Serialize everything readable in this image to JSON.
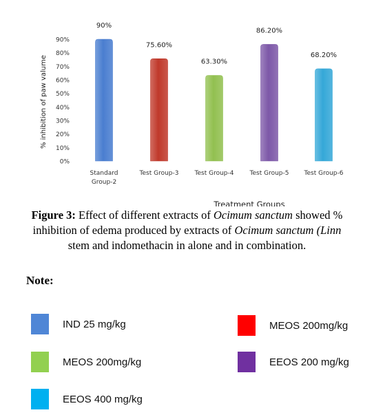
{
  "chart_data": {
    "type": "bar",
    "categories": [
      "Standard Group-2",
      "Test Group-3",
      "Test Group-4",
      "Test Group-5",
      "Test Group-6"
    ],
    "category_lines": [
      [
        "Standard",
        "Group-2"
      ],
      [
        "Test Group-3"
      ],
      [
        "Test Group-4"
      ],
      [
        "Test Group-5"
      ],
      [
        "Test Group-6"
      ]
    ],
    "values": [
      90,
      75.6,
      63.3,
      86.2,
      68.2
    ],
    "data_labels": [
      "90%",
      "75.60%",
      "63.30%",
      "86.20%",
      "68.20%"
    ],
    "bar_colors": [
      "#4a7ed0",
      "#c0392b",
      "#92c050",
      "#7d58a8",
      "#35a8d8"
    ],
    "ylabel": "% inhibition of paw valume",
    "xlabel": "Treatment Groups",
    "ylim": [
      0,
      90
    ],
    "yticks": [
      "0%",
      "10%",
      "20%",
      "30%",
      "40%",
      "50%",
      "60%",
      "70%",
      "80%",
      "90%"
    ],
    "grid": false
  },
  "caption": {
    "lead": "Figure 3:",
    "part1": " Effect of different extracts of ",
    "italic1": "Ocimum sanctum",
    "part2": " showed %",
    "part3": "inhibition of edema produced by extracts of ",
    "italic2": "Ocimum sanctum (Linn",
    "part4": "stem and indomethacin in alone and in combination."
  },
  "note": {
    "title": "Note:",
    "items": [
      {
        "label": "IND 25 mg/kg",
        "color": "#4f86d6"
      },
      {
        "label": "MEOS 200mg/kg",
        "color": "#ff0000"
      },
      {
        "label": "MEOS 200mg/kg",
        "color": "#92d050"
      },
      {
        "label": "EEOS 200 mg/kg",
        "color": "#7030a0"
      },
      {
        "label": "EEOS 400 mg/kg",
        "color": "#00b0f0"
      }
    ]
  }
}
